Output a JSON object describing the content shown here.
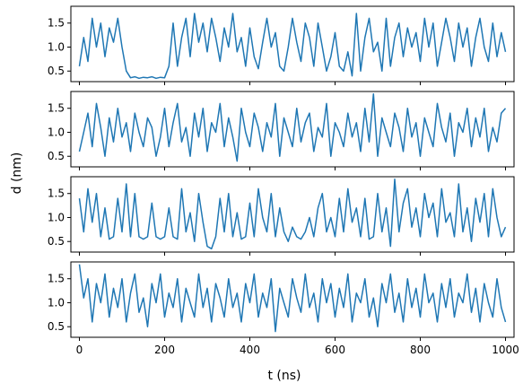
{
  "chart_data": {
    "type": "line",
    "layout": "4 vertically stacked panels with shared x axis",
    "xlabel": "t (ns)",
    "ylabel": "d (nm)",
    "xlim": [
      -20,
      1020
    ],
    "ylim": [
      0.28,
      1.85
    ],
    "x_ticks": [
      0,
      200,
      400,
      600,
      800,
      1000
    ],
    "y_ticks": [
      0.5,
      1.0,
      1.5
    ],
    "x_tick_labels": [
      "0",
      "200",
      "400",
      "600",
      "800",
      "1000"
    ],
    "y_tick_labels": [
      "0.5",
      "1.0",
      "1.5"
    ],
    "grid": false,
    "legend": "none",
    "line_color": "#1f77b4",
    "panels": [
      {
        "x": [
          0,
          10,
          20,
          30,
          40,
          50,
          60,
          70,
          80,
          90,
          100,
          110,
          120,
          130,
          140,
          150,
          160,
          170,
          180,
          190,
          200,
          210,
          220,
          230,
          240,
          250,
          260,
          270,
          280,
          290,
          300,
          310,
          320,
          330,
          340,
          350,
          360,
          370,
          380,
          390,
          400,
          410,
          420,
          430,
          440,
          450,
          460,
          470,
          480,
          490,
          500,
          510,
          520,
          530,
          540,
          550,
          560,
          570,
          580,
          590,
          600,
          610,
          620,
          630,
          640,
          650,
          660,
          670,
          680,
          690,
          700,
          710,
          720,
          730,
          740,
          750,
          760,
          770,
          780,
          790,
          800,
          810,
          820,
          830,
          840,
          850,
          860,
          870,
          880,
          890,
          900,
          910,
          920,
          930,
          940,
          950,
          960,
          970,
          980,
          990,
          1000
        ],
        "y": [
          0.6,
          1.2,
          0.7,
          1.6,
          1.0,
          1.5,
          0.8,
          1.4,
          1.1,
          1.6,
          1.0,
          0.5,
          0.36,
          0.38,
          0.35,
          0.37,
          0.36,
          0.38,
          0.35,
          0.37,
          0.36,
          0.6,
          1.5,
          0.6,
          1.2,
          1.6,
          0.8,
          1.7,
          1.1,
          1.5,
          0.9,
          1.6,
          1.2,
          0.7,
          1.4,
          1.0,
          1.7,
          0.9,
          1.2,
          0.6,
          1.4,
          0.8,
          0.55,
          1.1,
          1.6,
          1.0,
          1.3,
          0.6,
          0.5,
          1.0,
          1.6,
          1.1,
          0.7,
          1.5,
          1.2,
          0.6,
          1.5,
          1.0,
          0.5,
          0.8,
          1.3,
          0.6,
          0.5,
          0.9,
          0.4,
          1.7,
          0.5,
          1.2,
          1.6,
          0.9,
          1.1,
          0.5,
          1.6,
          0.6,
          1.2,
          1.5,
          0.8,
          1.4,
          1.0,
          1.3,
          0.7,
          1.6,
          1.0,
          1.5,
          0.6,
          1.1,
          1.6,
          1.2,
          0.7,
          1.5,
          1.0,
          1.4,
          0.6,
          1.2,
          1.6,
          1.0,
          0.7,
          1.5,
          0.8,
          1.3,
          0.9
        ]
      },
      {
        "x": [
          0,
          10,
          20,
          30,
          40,
          50,
          60,
          70,
          80,
          90,
          100,
          110,
          120,
          130,
          140,
          150,
          160,
          170,
          180,
          190,
          200,
          210,
          220,
          230,
          240,
          250,
          260,
          270,
          280,
          290,
          300,
          310,
          320,
          330,
          340,
          350,
          360,
          370,
          380,
          390,
          400,
          410,
          420,
          430,
          440,
          450,
          460,
          470,
          480,
          490,
          500,
          510,
          520,
          530,
          540,
          550,
          560,
          570,
          580,
          590,
          600,
          610,
          620,
          630,
          640,
          650,
          660,
          670,
          680,
          690,
          700,
          710,
          720,
          730,
          740,
          750,
          760,
          770,
          780,
          790,
          800,
          810,
          820,
          830,
          840,
          850,
          860,
          870,
          880,
          890,
          900,
          910,
          920,
          930,
          940,
          950,
          960,
          970,
          980,
          990,
          1000
        ],
        "y": [
          0.6,
          1.0,
          1.4,
          0.7,
          1.6,
          1.1,
          0.5,
          1.3,
          0.8,
          1.5,
          0.9,
          1.2,
          0.6,
          1.4,
          1.0,
          0.7,
          1.3,
          1.1,
          0.5,
          0.9,
          1.5,
          0.7,
          1.2,
          1.6,
          0.8,
          1.1,
          0.5,
          1.4,
          0.9,
          1.5,
          0.6,
          1.2,
          1.0,
          1.6,
          0.7,
          1.3,
          0.9,
          0.4,
          1.5,
          1.0,
          0.7,
          1.4,
          1.1,
          0.6,
          1.2,
          0.9,
          1.6,
          0.5,
          1.3,
          1.0,
          0.7,
          1.5,
          0.8,
          1.2,
          1.4,
          0.6,
          1.1,
          0.9,
          1.6,
          0.5,
          1.2,
          1.0,
          0.7,
          1.4,
          0.9,
          1.2,
          0.6,
          1.5,
          0.8,
          1.8,
          0.5,
          1.3,
          1.0,
          0.7,
          1.4,
          1.1,
          0.6,
          1.5,
          0.9,
          1.2,
          0.5,
          1.3,
          1.0,
          0.7,
          1.6,
          1.1,
          0.8,
          1.4,
          0.5,
          1.2,
          1.0,
          1.5,
          0.7,
          1.3,
          0.9,
          1.5,
          0.6,
          1.1,
          0.8,
          1.4,
          1.5
        ]
      },
      {
        "x": [
          0,
          10,
          20,
          30,
          40,
          50,
          60,
          70,
          80,
          90,
          100,
          110,
          120,
          130,
          140,
          150,
          160,
          170,
          180,
          190,
          200,
          210,
          220,
          230,
          240,
          250,
          260,
          270,
          280,
          290,
          300,
          310,
          320,
          330,
          340,
          350,
          360,
          370,
          380,
          390,
          400,
          410,
          420,
          430,
          440,
          450,
          460,
          470,
          480,
          490,
          500,
          510,
          520,
          530,
          540,
          550,
          560,
          570,
          580,
          590,
          600,
          610,
          620,
          630,
          640,
          650,
          660,
          670,
          680,
          690,
          700,
          710,
          720,
          730,
          740,
          750,
          760,
          770,
          780,
          790,
          800,
          810,
          820,
          830,
          840,
          850,
          860,
          870,
          880,
          890,
          900,
          910,
          920,
          930,
          940,
          950,
          960,
          970,
          980,
          990,
          1000
        ],
        "y": [
          1.4,
          0.7,
          1.6,
          0.9,
          1.5,
          0.6,
          1.2,
          0.55,
          0.6,
          1.4,
          0.7,
          1.7,
          0.6,
          1.5,
          0.6,
          0.55,
          0.6,
          1.3,
          0.6,
          0.55,
          0.6,
          1.2,
          0.6,
          0.55,
          1.6,
          0.7,
          1.1,
          0.5,
          1.5,
          0.9,
          0.4,
          0.35,
          0.6,
          1.4,
          0.7,
          1.5,
          0.6,
          1.1,
          0.55,
          0.6,
          1.3,
          0.6,
          1.6,
          1.0,
          0.7,
          1.5,
          0.6,
          1.2,
          0.7,
          0.5,
          0.8,
          0.6,
          0.55,
          0.7,
          1.0,
          0.6,
          1.2,
          1.5,
          0.7,
          1.0,
          0.6,
          1.4,
          0.7,
          1.6,
          0.9,
          1.2,
          0.6,
          1.4,
          0.55,
          0.6,
          1.5,
          0.7,
          1.2,
          0.4,
          1.8,
          0.7,
          1.3,
          1.6,
          0.8,
          1.2,
          0.6,
          1.5,
          1.0,
          1.3,
          0.6,
          1.6,
          0.9,
          1.1,
          0.6,
          1.7,
          0.7,
          1.2,
          0.5,
          1.4,
          0.9,
          1.5,
          0.6,
          1.6,
          1.0,
          0.6,
          0.8
        ]
      },
      {
        "x": [
          0,
          10,
          20,
          30,
          40,
          50,
          60,
          70,
          80,
          90,
          100,
          110,
          120,
          130,
          140,
          150,
          160,
          170,
          180,
          190,
          200,
          210,
          220,
          230,
          240,
          250,
          260,
          270,
          280,
          290,
          300,
          310,
          320,
          330,
          340,
          350,
          360,
          370,
          380,
          390,
          400,
          410,
          420,
          430,
          440,
          450,
          460,
          470,
          480,
          490,
          500,
          510,
          520,
          530,
          540,
          550,
          560,
          570,
          580,
          590,
          600,
          610,
          620,
          630,
          640,
          650,
          660,
          670,
          680,
          690,
          700,
          710,
          720,
          730,
          740,
          750,
          760,
          770,
          780,
          790,
          800,
          810,
          820,
          830,
          840,
          850,
          860,
          870,
          880,
          890,
          900,
          910,
          920,
          930,
          940,
          950,
          960,
          970,
          980,
          990,
          1000
        ],
        "y": [
          1.8,
          1.1,
          1.5,
          0.6,
          1.4,
          1.0,
          1.6,
          0.7,
          1.3,
          0.9,
          1.5,
          0.6,
          1.2,
          1.6,
          0.8,
          1.1,
          0.5,
          1.4,
          1.0,
          1.6,
          0.7,
          1.2,
          0.9,
          1.5,
          0.6,
          1.3,
          1.0,
          0.7,
          1.6,
          0.9,
          1.3,
          0.6,
          1.4,
          1.1,
          0.7,
          1.5,
          0.9,
          1.2,
          0.6,
          1.4,
          1.0,
          1.6,
          0.7,
          1.2,
          0.9,
          1.5,
          0.4,
          1.3,
          1.0,
          0.7,
          1.5,
          1.1,
          0.8,
          1.6,
          0.9,
          1.2,
          0.6,
          1.5,
          1.0,
          1.4,
          0.7,
          1.3,
          0.9,
          1.6,
          0.6,
          1.2,
          1.0,
          1.5,
          0.7,
          1.1,
          0.5,
          1.4,
          1.0,
          1.6,
          0.8,
          1.2,
          0.6,
          1.5,
          0.9,
          1.3,
          0.7,
          1.6,
          1.0,
          1.2,
          0.6,
          1.4,
          0.9,
          1.5,
          0.7,
          1.2,
          1.0,
          1.6,
          0.8,
          1.3,
          0.6,
          1.4,
          1.0,
          0.7,
          1.5,
          0.9,
          0.6
        ]
      }
    ]
  }
}
